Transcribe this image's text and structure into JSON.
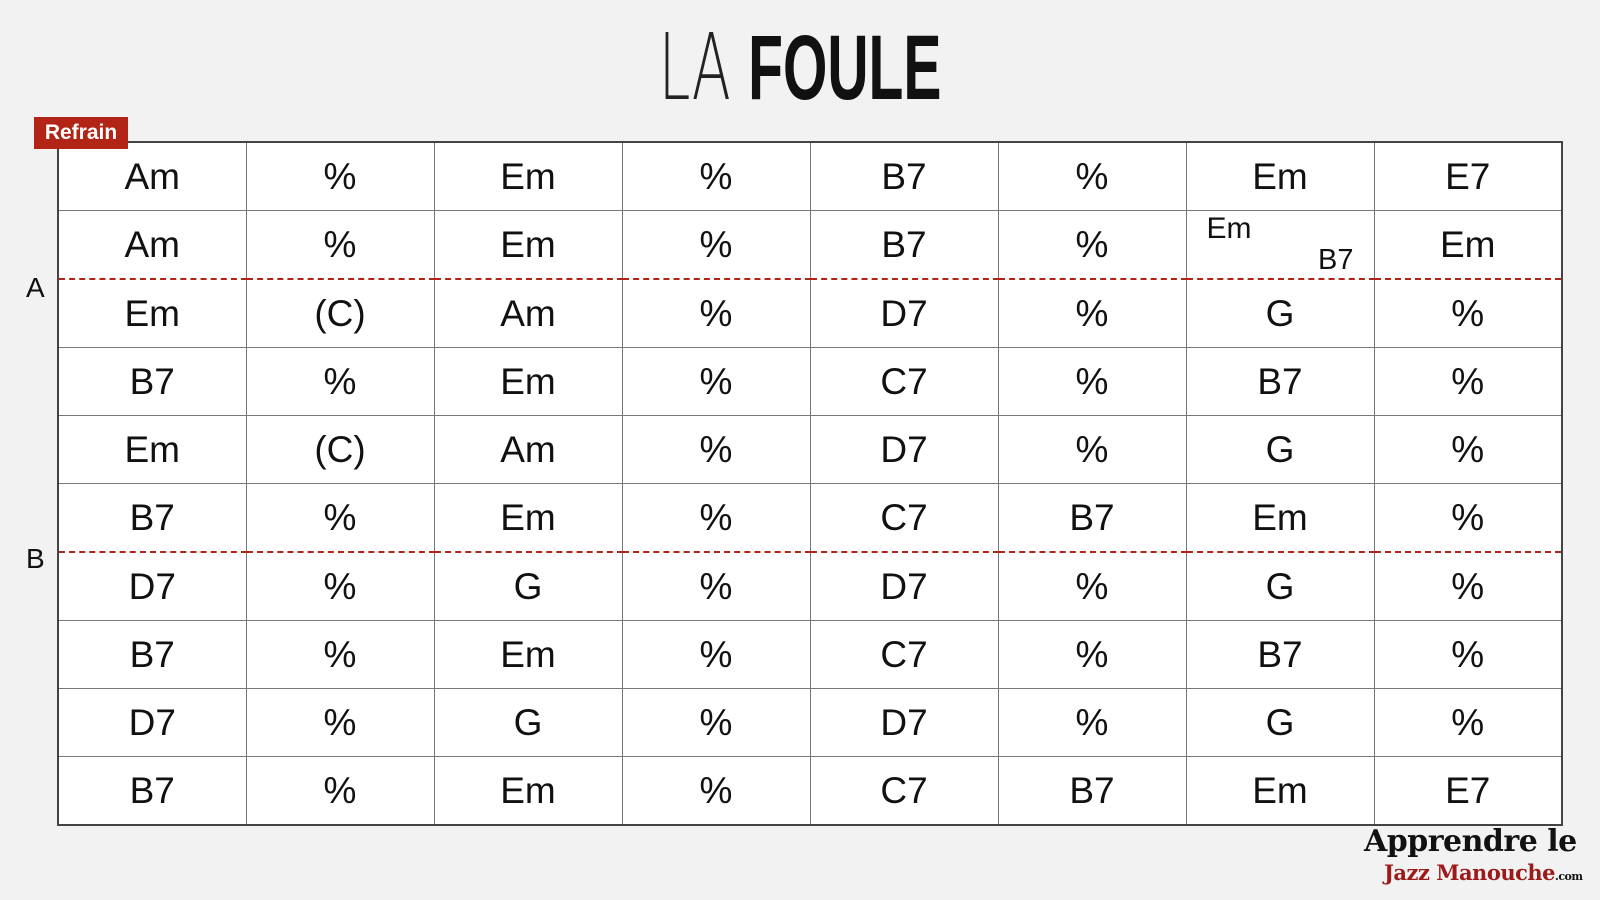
{
  "title": {
    "light": "LA",
    "bold": "FOULE"
  },
  "badge": "Refrain",
  "sections": [
    "A",
    "B"
  ],
  "colors": {
    "accent": "#b22416",
    "logo_red": "#9c1a1a"
  },
  "grid": [
    [
      "Am",
      "%",
      "Em",
      "%",
      "B7",
      "%",
      "Em",
      "E7"
    ],
    [
      "Am",
      "%",
      "Em",
      "%",
      "B7",
      "%",
      {
        "top": "Em",
        "bottom": "B7"
      },
      "Em"
    ],
    [
      "Em",
      "(C)",
      "Am",
      "%",
      "D7",
      "%",
      "G",
      "%"
    ],
    [
      "B7",
      "%",
      "Em",
      "%",
      "C7",
      "%",
      "B7",
      "%"
    ],
    [
      "Em",
      "(C)",
      "Am",
      "%",
      "D7",
      "%",
      "G",
      "%"
    ],
    [
      "B7",
      "%",
      "Em",
      "%",
      "C7",
      "B7",
      "Em",
      "%"
    ],
    [
      "D7",
      "%",
      "G",
      "%",
      "D7",
      "%",
      "G",
      "%"
    ],
    [
      "B7",
      "%",
      "Em",
      "%",
      "C7",
      "%",
      "B7",
      "%"
    ],
    [
      "D7",
      "%",
      "G",
      "%",
      "D7",
      "%",
      "G",
      "%"
    ],
    [
      "B7",
      "%",
      "Em",
      "%",
      "C7",
      "B7",
      "Em",
      "E7"
    ]
  ],
  "logo": {
    "line1": "Apprendre le",
    "line2": "Jazz Manouche",
    "suffix": ".com"
  }
}
